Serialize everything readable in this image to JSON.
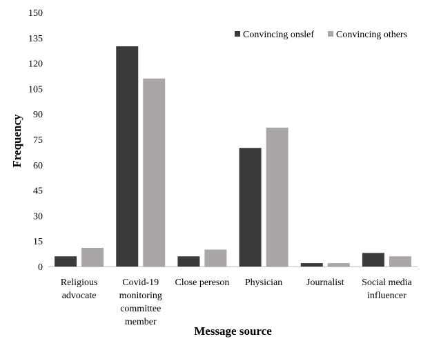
{
  "chart_data": {
    "type": "bar",
    "title": "",
    "xlabel": "Message source",
    "ylabel": "Frequency",
    "ylim": [
      0,
      150
    ],
    "yticks": [
      0,
      15,
      30,
      45,
      60,
      75,
      90,
      105,
      120,
      135,
      150
    ],
    "grid": false,
    "legend_position": "top-right",
    "categories": [
      [
        "Religious",
        "advocate"
      ],
      [
        "Covid-19",
        "monitoring",
        "committee",
        "member"
      ],
      [
        "Close pereson"
      ],
      [
        "Physician"
      ],
      [
        "Journalist"
      ],
      [
        "Social media",
        "influencer"
      ]
    ],
    "series": [
      {
        "name": "Convincing onslef",
        "color": "#3a3a3a",
        "values": [
          6,
          130,
          6,
          70,
          2,
          8
        ]
      },
      {
        "name": "Convincing others",
        "color": "#aaa6a6",
        "values": [
          11,
          111,
          10,
          82,
          2,
          6
        ]
      }
    ]
  }
}
